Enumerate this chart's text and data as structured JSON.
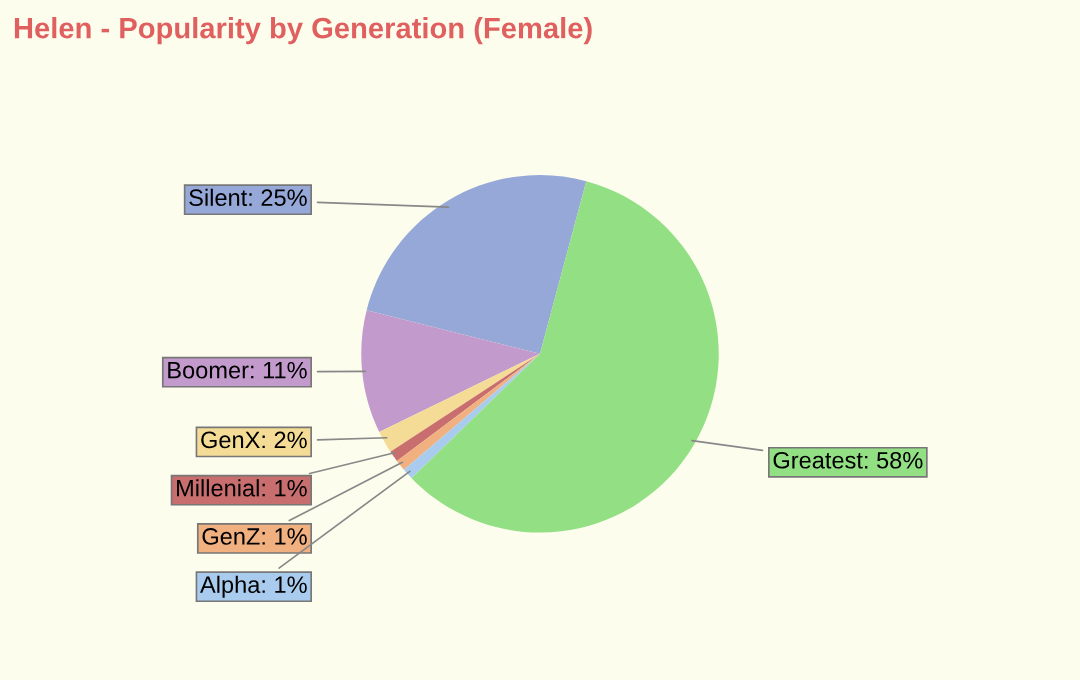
{
  "chart_data": {
    "type": "pie",
    "title": "Helen - Popularity by Generation (Female)",
    "categories": [
      "Silent: 25%",
      "Boomer: 11%",
      "GenX: 2%",
      "Millenial: 1%",
      "GenZ: 1%",
      "Alpha: 1%",
      "Greatest: 58%"
    ],
    "values": [
      25,
      11,
      2,
      1,
      1,
      1,
      58
    ],
    "colors": [
      "#95a8d8",
      "#c29bcc",
      "#f5dc96",
      "#c86e6e",
      "#f0b080",
      "#a8cbee",
      "#93df84"
    ]
  }
}
